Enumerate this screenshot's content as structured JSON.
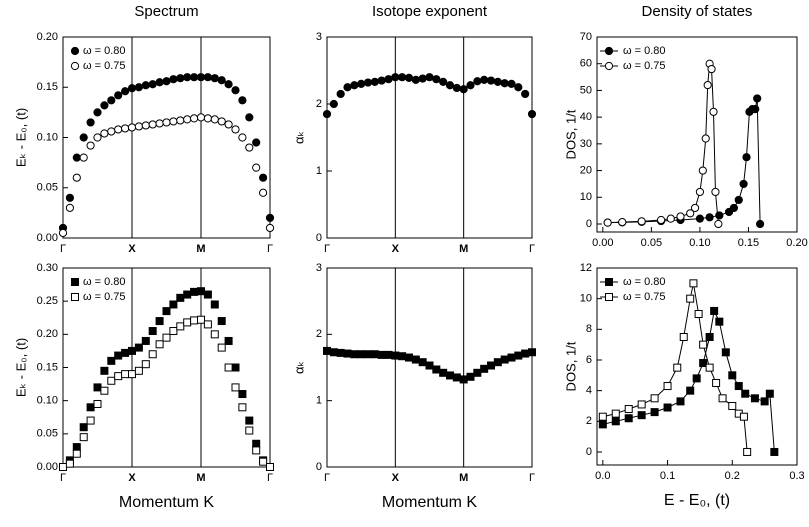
{
  "chart_data": [
    {
      "type": "scatter",
      "title": "Spectrum",
      "y_label": "Eₖ - E₀, (t)",
      "x": [
        0,
        0.1,
        0.2,
        0.3,
        0.4,
        0.5,
        0.6,
        0.7,
        0.8,
        0.9,
        1.0,
        1.1,
        1.2,
        1.3,
        1.4,
        1.5,
        1.6,
        1.7,
        1.8,
        1.9,
        2.0,
        2.1,
        2.2,
        2.3,
        2.4,
        2.5,
        2.6,
        2.7,
        2.8,
        2.9,
        3.0
      ],
      "series": [
        {
          "name": "ω = 0.80",
          "color": "#000000",
          "marker": "circle",
          "filled": true,
          "values": [
            0.01,
            0.04,
            0.08,
            0.1,
            0.115,
            0.125,
            0.132,
            0.137,
            0.142,
            0.146,
            0.149,
            0.15,
            0.152,
            0.153,
            0.155,
            0.156,
            0.158,
            0.159,
            0.16,
            0.16,
            0.16,
            0.16,
            0.159,
            0.157,
            0.153,
            0.147,
            0.137,
            0.12,
            0.095,
            0.06,
            0.02
          ]
        },
        {
          "name": "ω = 0.75",
          "color": "#000000",
          "marker": "circle",
          "filled": false,
          "values": [
            0.005,
            0.03,
            0.06,
            0.08,
            0.092,
            0.1,
            0.104,
            0.106,
            0.108,
            0.109,
            0.11,
            0.111,
            0.112,
            0.113,
            0.114,
            0.115,
            0.116,
            0.117,
            0.118,
            0.119,
            0.12,
            0.119,
            0.118,
            0.116,
            0.113,
            0.108,
            0.1,
            0.09,
            0.07,
            0.045,
            0.01
          ]
        }
      ],
      "xlim": [
        0,
        3
      ],
      "xticks": [
        {
          "value": 0,
          "label": "Γ"
        },
        {
          "value": 1,
          "label": "X"
        },
        {
          "value": 2,
          "label": "M"
        },
        {
          "value": 3,
          "label": "Γ"
        }
      ],
      "ylim": [
        0,
        0.2
      ],
      "yticks": [
        {
          "value": 0,
          "label": "0.00"
        },
        {
          "value": 0.05,
          "label": "0.05"
        },
        {
          "value": 0.1,
          "label": "0.10"
        },
        {
          "value": 0.15,
          "label": "0.15"
        },
        {
          "value": 0.2,
          "label": "0.20"
        }
      ],
      "vlines": true,
      "legend": "upper left",
      "line": false
    },
    {
      "type": "scatter",
      "title": "Isotope exponent",
      "y_label": "αₖ",
      "x": [
        0,
        0.1,
        0.2,
        0.3,
        0.4,
        0.5,
        0.6,
        0.7,
        0.8,
        0.9,
        1.0,
        1.1,
        1.2,
        1.3,
        1.4,
        1.5,
        1.6,
        1.7,
        1.8,
        1.9,
        2.0,
        2.1,
        2.2,
        2.3,
        2.4,
        2.5,
        2.6,
        2.7,
        2.8,
        2.9,
        3.0
      ],
      "series": [
        {
          "color": "#000000",
          "marker": "circle",
          "filled": true,
          "values": [
            1.85,
            2.0,
            2.15,
            2.25,
            2.28,
            2.3,
            2.32,
            2.33,
            2.35,
            2.37,
            2.4,
            2.4,
            2.39,
            2.36,
            2.38,
            2.4,
            2.37,
            2.33,
            2.28,
            2.24,
            2.22,
            2.28,
            2.34,
            2.36,
            2.35,
            2.33,
            2.31,
            2.3,
            2.25,
            2.15,
            1.85
          ]
        }
      ],
      "xlim": [
        0,
        3
      ],
      "xticks": [
        {
          "value": 0,
          "label": "Γ"
        },
        {
          "value": 1,
          "label": "X"
        },
        {
          "value": 2,
          "label": "M"
        },
        {
          "value": 3,
          "label": "Γ"
        }
      ],
      "ylim": [
        0,
        3
      ],
      "yticks": [
        0,
        1,
        2,
        3
      ],
      "vlines": true,
      "line": false
    },
    {
      "type": "scatter",
      "title": "Density of states",
      "y_label": "DOS, 1/t",
      "series": [
        {
          "name": "ω = 0.80",
          "color": "#000000",
          "marker": "circle",
          "filled": true,
          "x": [
            0.005,
            0.02,
            0.04,
            0.06,
            0.08,
            0.1,
            0.11,
            0.12,
            0.13,
            0.135,
            0.14,
            0.145,
            0.148,
            0.151,
            0.154,
            0.157,
            0.159,
            0.162
          ],
          "values": [
            0.5,
            0.6,
            0.8,
            1.1,
            1.5,
            2,
            2.5,
            3.2,
            4.5,
            6,
            9,
            15,
            25,
            42,
            43,
            43,
            47,
            0
          ]
        },
        {
          "name": "ω = 0.75",
          "color": "#000000",
          "marker": "circle",
          "filled": false,
          "x": [
            0.005,
            0.02,
            0.04,
            0.06,
            0.07,
            0.08,
            0.09,
            0.095,
            0.1,
            0.103,
            0.106,
            0.108,
            0.11,
            0.112,
            0.114,
            0.116,
            0.119
          ],
          "values": [
            0.5,
            0.7,
            1,
            1.5,
            2,
            2.8,
            4,
            6,
            12,
            20,
            32,
            52,
            60,
            58,
            42,
            12,
            0
          ]
        }
      ],
      "xlim": [
        -0.006,
        0.2
      ],
      "xticks": [
        {
          "value": 0,
          "label": "0.00"
        },
        {
          "value": 0.05,
          "label": "0.05"
        },
        {
          "value": 0.1,
          "label": "0.10"
        },
        {
          "value": 0.15,
          "label": "0.15"
        },
        {
          "value": 0.2,
          "label": "0.20"
        }
      ],
      "ylim": [
        -3,
        70
      ],
      "yticks": [
        0,
        10,
        20,
        30,
        40,
        50,
        60,
        70
      ],
      "legend": "upper left",
      "line": true
    },
    {
      "type": "scatter",
      "y_label": "Eₖ - E₀, (t)",
      "x_label": "Momentum K",
      "x": [
        0,
        0.1,
        0.2,
        0.3,
        0.4,
        0.5,
        0.6,
        0.7,
        0.8,
        0.9,
        1.0,
        1.1,
        1.2,
        1.3,
        1.4,
        1.5,
        1.6,
        1.7,
        1.8,
        1.9,
        2.0,
        2.1,
        2.2,
        2.3,
        2.4,
        2.5,
        2.6,
        2.7,
        2.8,
        2.9,
        3.0
      ],
      "series": [
        {
          "name": "ω = 0.80",
          "color": "#000000",
          "marker": "square",
          "filled": true,
          "values": [
            0,
            0.01,
            0.03,
            0.06,
            0.09,
            0.12,
            0.145,
            0.16,
            0.168,
            0.172,
            0.175,
            0.18,
            0.19,
            0.205,
            0.22,
            0.235,
            0.245,
            0.255,
            0.26,
            0.264,
            0.265,
            0.26,
            0.245,
            0.22,
            0.19,
            0.15,
            0.11,
            0.07,
            0.035,
            0.01,
            0
          ]
        },
        {
          "name": "ω = 0.75",
          "color": "#000000",
          "marker": "square",
          "filled": false,
          "values": [
            0,
            0.005,
            0.02,
            0.045,
            0.07,
            0.095,
            0.115,
            0.13,
            0.137,
            0.14,
            0.14,
            0.145,
            0.155,
            0.17,
            0.185,
            0.195,
            0.205,
            0.212,
            0.218,
            0.221,
            0.222,
            0.215,
            0.2,
            0.18,
            0.15,
            0.12,
            0.09,
            0.055,
            0.025,
            0.008,
            0
          ]
        }
      ],
      "xlim": [
        0,
        3
      ],
      "xticks": [
        {
          "value": 0,
          "label": "Γ"
        },
        {
          "value": 1,
          "label": "X"
        },
        {
          "value": 2,
          "label": "M"
        },
        {
          "value": 3,
          "label": "Γ"
        }
      ],
      "ylim": [
        0,
        0.3
      ],
      "yticks": [
        {
          "value": 0,
          "label": "0.00"
        },
        {
          "value": 0.05,
          "label": "0.05"
        },
        {
          "value": 0.1,
          "label": "0.10"
        },
        {
          "value": 0.15,
          "label": "0.15"
        },
        {
          "value": 0.2,
          "label": "0.20"
        },
        {
          "value": 0.25,
          "label": "0.25"
        },
        {
          "value": 0.3,
          "label": "0.30"
        }
      ],
      "vlines": true,
      "legend": "upper left",
      "line": false
    },
    {
      "type": "scatter",
      "y_label": "αₖ",
      "x_label": "Momentum K",
      "x": [
        0,
        0.1,
        0.2,
        0.3,
        0.4,
        0.5,
        0.6,
        0.7,
        0.8,
        0.9,
        1.0,
        1.1,
        1.2,
        1.3,
        1.4,
        1.5,
        1.6,
        1.7,
        1.8,
        1.9,
        2.0,
        2.1,
        2.2,
        2.3,
        2.4,
        2.5,
        2.6,
        2.7,
        2.8,
        2.9,
        3.0
      ],
      "series": [
        {
          "color": "#000000",
          "marker": "square",
          "filled": true,
          "values": [
            1.75,
            1.73,
            1.72,
            1.71,
            1.7,
            1.7,
            1.7,
            1.7,
            1.69,
            1.69,
            1.68,
            1.67,
            1.65,
            1.62,
            1.58,
            1.53,
            1.47,
            1.42,
            1.38,
            1.35,
            1.32,
            1.36,
            1.42,
            1.48,
            1.53,
            1.58,
            1.62,
            1.65,
            1.68,
            1.71,
            1.73
          ]
        }
      ],
      "xlim": [
        0,
        3
      ],
      "xticks": [
        {
          "value": 0,
          "label": "Γ"
        },
        {
          "value": 1,
          "label": "X"
        },
        {
          "value": 2,
          "label": "M"
        },
        {
          "value": 3,
          "label": "Γ"
        }
      ],
      "ylim": [
        0,
        3
      ],
      "yticks": [
        0,
        1,
        2,
        3
      ],
      "vlines": true,
      "line": false
    },
    {
      "type": "scatter",
      "y_label": "DOS, 1/t",
      "x_label": "E - E₀, (t)",
      "series": [
        {
          "name": "ω = 0.80",
          "color": "#000000",
          "marker": "square",
          "filled": true,
          "x": [
            0,
            0.02,
            0.04,
            0.06,
            0.08,
            0.1,
            0.12,
            0.135,
            0.145,
            0.155,
            0.165,
            0.172,
            0.18,
            0.19,
            0.2,
            0.21,
            0.22,
            0.235,
            0.25,
            0.258,
            0.265
          ],
          "values": [
            1.8,
            2,
            2.2,
            2.4,
            2.6,
            2.9,
            3.3,
            4,
            4.8,
            5.8,
            7.5,
            9.2,
            8.5,
            6.5,
            5,
            4.3,
            3.8,
            3.5,
            3.3,
            3.8,
            0
          ]
        },
        {
          "name": "ω = 0.75",
          "color": "#000000",
          "marker": "square",
          "filled": false,
          "x": [
            0,
            0.02,
            0.04,
            0.06,
            0.08,
            0.1,
            0.115,
            0.125,
            0.135,
            0.14,
            0.148,
            0.155,
            0.165,
            0.175,
            0.185,
            0.2,
            0.21,
            0.218,
            0.223
          ],
          "values": [
            2.3,
            2.5,
            2.8,
            3.1,
            3.5,
            4.3,
            5.5,
            7.5,
            10,
            11,
            9,
            7,
            5.5,
            4.5,
            3.5,
            3,
            2.5,
            2.3,
            0
          ]
        }
      ],
      "xlim": [
        -0.009,
        0.3
      ],
      "xticks": [
        {
          "value": 0,
          "label": "0.0"
        },
        0.1,
        0.2,
        0.3
      ],
      "ylim": [
        -0.85,
        12
      ],
      "yticks": [
        0,
        2,
        4,
        6,
        8,
        10,
        12
      ],
      "legend": "upper left",
      "line": true
    }
  ]
}
